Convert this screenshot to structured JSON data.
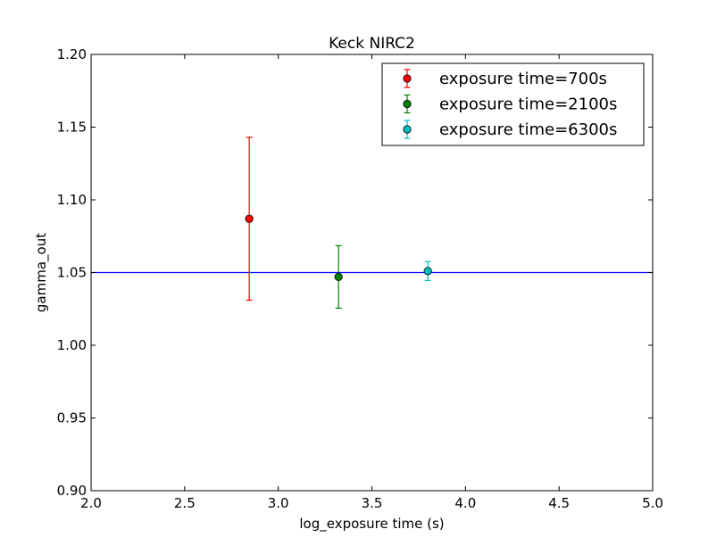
{
  "chart_data": {
    "type": "scatter",
    "title": "Keck NIRC2",
    "xlabel": "log_exposure time (s)",
    "ylabel": "gamma_out",
    "xlim": [
      2.0,
      5.0
    ],
    "ylim": [
      0.9,
      1.2
    ],
    "xticks": [
      "2.0",
      "2.5",
      "3.0",
      "3.5",
      "4.0",
      "4.5",
      "5.0"
    ],
    "yticks": [
      "0.90",
      "0.95",
      "1.00",
      "1.05",
      "1.10",
      "1.15",
      "1.20"
    ],
    "grid": false,
    "legend_position": "top-right",
    "reference_line": {
      "y": 1.05,
      "color": "#0000ff"
    },
    "series": [
      {
        "name": "exposure time=700s",
        "color": "#ff0000",
        "x": 2.845,
        "y": 1.087,
        "yerr": 0.056
      },
      {
        "name": "exposure time=2100s",
        "color": "#008000",
        "x": 3.322,
        "y": 1.047,
        "yerr": 0.0215
      },
      {
        "name": "exposure time=6300s",
        "color": "#00bfbf",
        "x": 3.799,
        "y": 1.051,
        "yerr": 0.0065
      }
    ]
  }
}
